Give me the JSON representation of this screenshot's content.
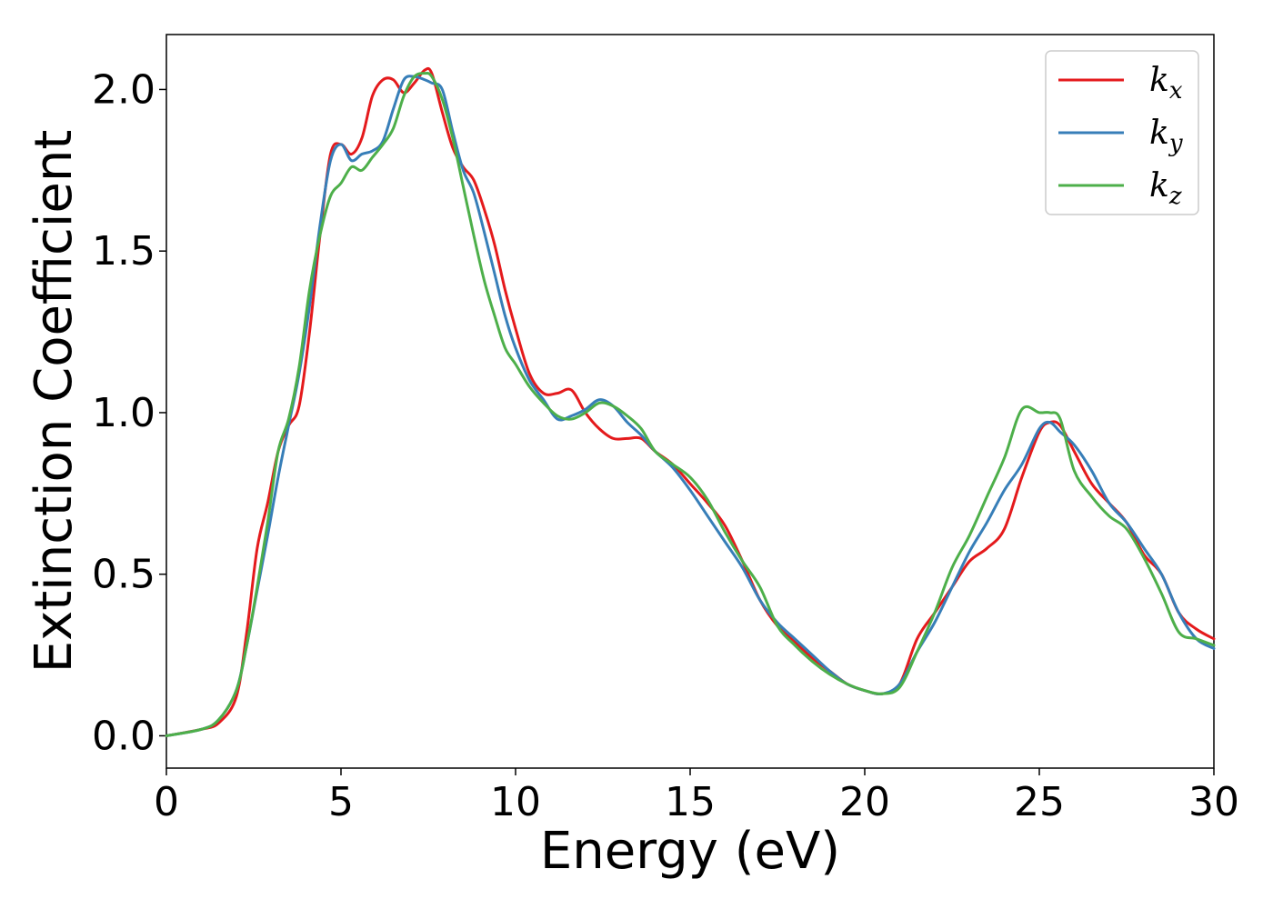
{
  "chart_data": {
    "type": "line",
    "title": "",
    "xlabel": "Energy (eV)",
    "ylabel": "Extinction Coefficient",
    "xlim": [
      0,
      30
    ],
    "ylim": [
      -0.1,
      2.17
    ],
    "xticks": [
      0,
      5,
      10,
      15,
      20,
      25,
      30
    ],
    "xtick_labels": [
      "0",
      "5",
      "10",
      "15",
      "20",
      "25",
      "30"
    ],
    "yticks": [
      0.0,
      0.5,
      1.0,
      1.5,
      2.0
    ],
    "ytick_labels": [
      "0.0",
      "0.5",
      "1.0",
      "1.5",
      "2.0"
    ],
    "grid": false,
    "legend_position": "top-right",
    "series": [
      {
        "name": "k",
        "name_sub": "x",
        "color": "#e41a1c",
        "x": [
          0,
          1,
          1.5,
          2,
          2.3,
          2.6,
          2.9,
          3.2,
          3.5,
          3.8,
          4.1,
          4.4,
          4.7,
          5.0,
          5.3,
          5.6,
          5.9,
          6.2,
          6.5,
          6.8,
          7.1,
          7.4,
          7.6,
          7.9,
          8.2,
          8.5,
          8.8,
          9.1,
          9.4,
          9.7,
          10.0,
          10.4,
          10.8,
          11.2,
          11.6,
          12.0,
          12.4,
          12.8,
          13.2,
          13.6,
          14.0,
          14.5,
          15.0,
          15.5,
          16.0,
          16.5,
          17.0,
          17.5,
          18.0,
          18.5,
          19.0,
          19.5,
          20.0,
          20.5,
          21.0,
          21.5,
          22.0,
          22.5,
          23.0,
          23.5,
          24.0,
          24.5,
          25.0,
          25.3,
          25.6,
          26.0,
          26.5,
          27.0,
          27.5,
          28.0,
          28.5,
          29.0,
          29.5,
          30.0
        ],
        "y": [
          0,
          0.02,
          0.04,
          0.12,
          0.32,
          0.58,
          0.72,
          0.88,
          0.96,
          1.02,
          1.25,
          1.55,
          1.8,
          1.83,
          1.8,
          1.85,
          1.98,
          2.03,
          2.03,
          1.99,
          2.02,
          2.06,
          2.05,
          1.93,
          1.82,
          1.76,
          1.72,
          1.63,
          1.52,
          1.38,
          1.26,
          1.12,
          1.06,
          1.06,
          1.07,
          1.0,
          0.95,
          0.92,
          0.92,
          0.92,
          0.88,
          0.84,
          0.78,
          0.72,
          0.65,
          0.54,
          0.42,
          0.34,
          0.29,
          0.24,
          0.2,
          0.16,
          0.14,
          0.13,
          0.16,
          0.3,
          0.38,
          0.46,
          0.54,
          0.58,
          0.64,
          0.8,
          0.94,
          0.97,
          0.96,
          0.88,
          0.78,
          0.72,
          0.66,
          0.56,
          0.5,
          0.38,
          0.33,
          0.3
        ]
      },
      {
        "name": "k",
        "name_sub": "y",
        "color": "#377eb8",
        "x": [
          0,
          1,
          1.5,
          2,
          2.3,
          2.6,
          2.9,
          3.2,
          3.5,
          3.8,
          4.1,
          4.4,
          4.7,
          5.0,
          5.3,
          5.6,
          5.9,
          6.2,
          6.5,
          6.8,
          7.1,
          7.4,
          7.6,
          7.9,
          8.2,
          8.5,
          8.8,
          9.1,
          9.4,
          9.7,
          10.0,
          10.4,
          10.8,
          11.2,
          11.6,
          12.0,
          12.4,
          12.8,
          13.2,
          13.6,
          14.0,
          14.5,
          15.0,
          15.5,
          16.0,
          16.5,
          17.0,
          17.5,
          18.0,
          18.5,
          19.0,
          19.5,
          20.0,
          20.5,
          21.0,
          21.5,
          22.0,
          22.5,
          23.0,
          23.5,
          24.0,
          24.5,
          25.0,
          25.3,
          25.6,
          26.0,
          26.5,
          27.0,
          27.5,
          28.0,
          28.5,
          29.0,
          29.5,
          30.0
        ],
        "y": [
          0,
          0.02,
          0.05,
          0.14,
          0.28,
          0.45,
          0.62,
          0.8,
          0.96,
          1.12,
          1.33,
          1.58,
          1.78,
          1.83,
          1.78,
          1.8,
          1.81,
          1.84,
          1.94,
          2.03,
          2.04,
          2.03,
          2.02,
          2.0,
          1.87,
          1.75,
          1.68,
          1.56,
          1.43,
          1.3,
          1.2,
          1.1,
          1.04,
          0.98,
          0.99,
          1.01,
          1.04,
          1.02,
          0.97,
          0.93,
          0.88,
          0.83,
          0.76,
          0.68,
          0.6,
          0.52,
          0.42,
          0.35,
          0.3,
          0.25,
          0.2,
          0.16,
          0.14,
          0.13,
          0.16,
          0.26,
          0.35,
          0.46,
          0.57,
          0.66,
          0.76,
          0.84,
          0.95,
          0.97,
          0.94,
          0.9,
          0.82,
          0.72,
          0.66,
          0.58,
          0.5,
          0.38,
          0.3,
          0.27
        ]
      },
      {
        "name": "k",
        "name_sub": "z",
        "color": "#4daf4a",
        "x": [
          0,
          1,
          1.5,
          2,
          2.3,
          2.6,
          2.9,
          3.2,
          3.5,
          3.8,
          4.1,
          4.4,
          4.7,
          5.0,
          5.3,
          5.6,
          5.9,
          6.2,
          6.5,
          6.8,
          7.1,
          7.4,
          7.6,
          7.9,
          8.2,
          8.5,
          8.8,
          9.1,
          9.4,
          9.7,
          10.0,
          10.4,
          10.8,
          11.2,
          11.6,
          12.0,
          12.4,
          12.8,
          13.2,
          13.6,
          14.0,
          14.5,
          15.0,
          15.5,
          16.0,
          16.5,
          17.0,
          17.5,
          18.0,
          18.5,
          19.0,
          19.5,
          20.0,
          20.5,
          21.0,
          21.5,
          22.0,
          22.5,
          23.0,
          23.5,
          24.0,
          24.5,
          25.0,
          25.3,
          25.6,
          26.0,
          26.5,
          27.0,
          27.5,
          28.0,
          28.5,
          29.0,
          29.5,
          30.0
        ],
        "y": [
          0,
          0.02,
          0.05,
          0.14,
          0.28,
          0.46,
          0.66,
          0.88,
          0.98,
          1.14,
          1.38,
          1.55,
          1.67,
          1.71,
          1.76,
          1.75,
          1.79,
          1.83,
          1.88,
          1.98,
          2.04,
          2.05,
          2.04,
          1.97,
          1.85,
          1.7,
          1.55,
          1.41,
          1.3,
          1.2,
          1.15,
          1.08,
          1.03,
          0.99,
          0.98,
          1.0,
          1.03,
          1.02,
          0.99,
          0.95,
          0.88,
          0.84,
          0.8,
          0.73,
          0.63,
          0.54,
          0.46,
          0.34,
          0.28,
          0.23,
          0.19,
          0.16,
          0.14,
          0.13,
          0.15,
          0.26,
          0.38,
          0.52,
          0.62,
          0.74,
          0.86,
          1.01,
          1.0,
          1.0,
          0.98,
          0.82,
          0.74,
          0.68,
          0.64,
          0.55,
          0.44,
          0.32,
          0.3,
          0.28
        ]
      }
    ]
  }
}
